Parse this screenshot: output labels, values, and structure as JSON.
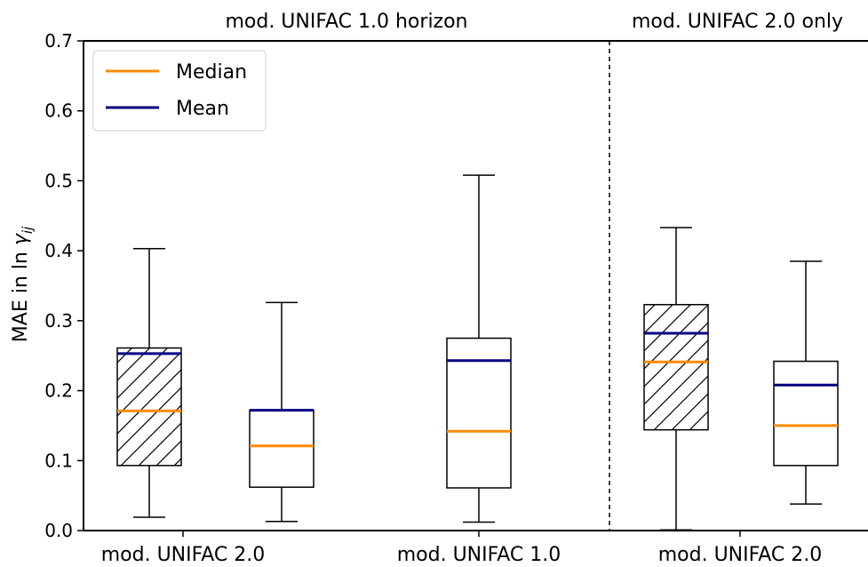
{
  "chart_data": {
    "type": "box",
    "ylabel_prefix": "MAE in ln ",
    "ylabel_symbol": "γ",
    "ylabel_sub": "ij",
    "ylim": [
      0.0,
      0.7
    ],
    "yticks": [
      "0.0",
      "0.1",
      "0.2",
      "0.3",
      "0.4",
      "0.5",
      "0.6",
      "0.7"
    ],
    "yticks_values": [
      0.0,
      0.1,
      0.2,
      0.3,
      0.4,
      0.5,
      0.6,
      0.7
    ],
    "section_titles": [
      "mod. UNIFAC 1.0 horizon",
      "mod. UNIFAC 2.0 only"
    ],
    "xticks": [
      "mod. UNIFAC 2.0",
      "mod. UNIFAC 1.0",
      "mod. UNIFAC 2.0"
    ],
    "legend": {
      "position": "top-left",
      "entries": [
        {
          "label": "Median",
          "color": "#ff8c00"
        },
        {
          "label": "Mean",
          "color": "#000080"
        }
      ]
    },
    "boxes": [
      {
        "whisker_low": 0.019,
        "q1": 0.093,
        "median": 0.171,
        "mean": 0.253,
        "q3": 0.261,
        "whisker_high": 0.403,
        "hatched": true
      },
      {
        "whisker_low": 0.013,
        "q1": 0.062,
        "median": 0.121,
        "mean": 0.172,
        "q3": 0.172,
        "whisker_high": 0.326,
        "hatched": false
      },
      {
        "whisker_low": 0.012,
        "q1": 0.061,
        "median": 0.142,
        "mean": 0.243,
        "q3": 0.275,
        "whisker_high": 0.508,
        "hatched": false
      },
      {
        "whisker_low": 0.001,
        "q1": 0.144,
        "median": 0.241,
        "mean": 0.282,
        "q3": 0.323,
        "whisker_high": 0.433,
        "hatched": true
      },
      {
        "whisker_low": 0.038,
        "q1": 0.093,
        "median": 0.15,
        "mean": 0.208,
        "q3": 0.242,
        "whisker_high": 0.385,
        "hatched": false
      }
    ],
    "colors": {
      "median": "#ff8c00",
      "mean": "#000080",
      "box": "#000000"
    },
    "separator": "dashed"
  }
}
